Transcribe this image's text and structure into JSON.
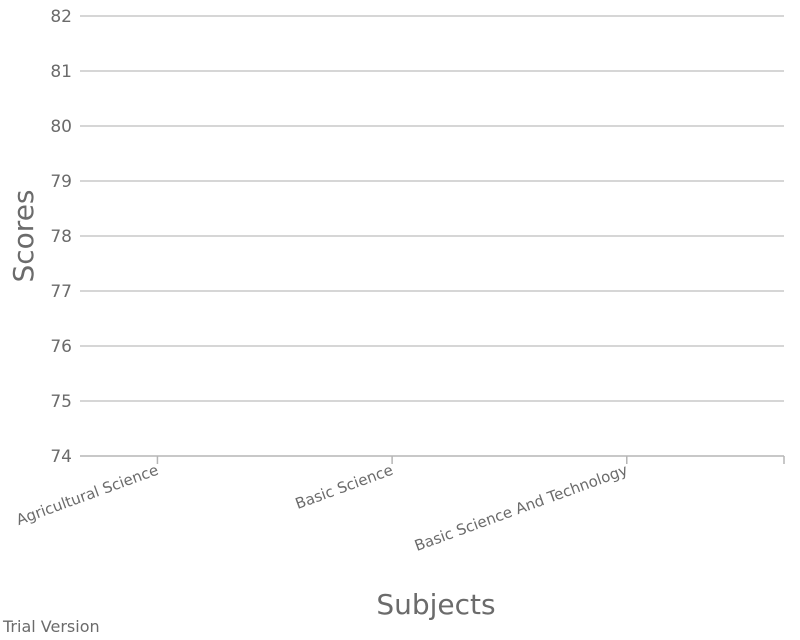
{
  "chart_data": {
    "type": "bar",
    "title": "",
    "xlabel": "Subjects",
    "ylabel": "Scores",
    "categories": [
      "Agricultural Science",
      "Basic Science",
      "Basic Science And Technology"
    ],
    "series": [],
    "ylim": [
      74,
      82
    ],
    "y_ticks": [
      74,
      75,
      76,
      77,
      78,
      79,
      80,
      81,
      82
    ],
    "grid": true,
    "legend": "none"
  },
  "watermark": "Trial Version",
  "colors": {
    "text": "#6b6b6b",
    "grid": "#c8c8c8",
    "axis": "#b5b5b5"
  }
}
